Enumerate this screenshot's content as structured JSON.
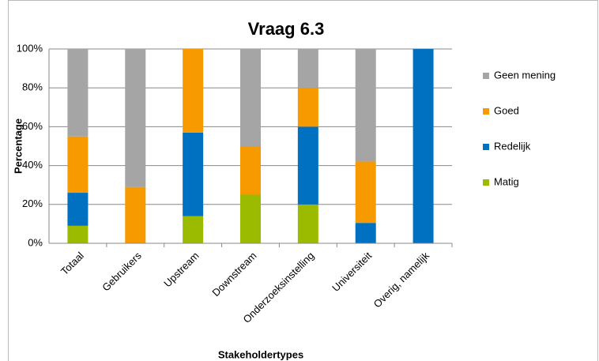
{
  "chart_data": {
    "type": "stacked_bar",
    "title": "Vraag 6.3",
    "x_label": "Stakeholdertypes",
    "y_label": "Percentage",
    "categories": [
      "Totaal",
      "Gebruikers",
      "Upstream",
      "Downstream",
      "Onderzoeksinstelling",
      "Universiteit",
      "Overig, namelijk"
    ],
    "series": [
      {
        "name": "Matig",
        "color": "#9bbb00",
        "values": [
          9,
          0,
          14,
          25,
          20,
          0,
          0
        ]
      },
      {
        "name": "Redelijk",
        "color": "#0070c0",
        "values": [
          17,
          0,
          43,
          0,
          40,
          10.5,
          100
        ]
      },
      {
        "name": "Goed",
        "color": "#f79a00",
        "values": [
          29,
          29,
          43,
          25,
          20,
          31.6,
          0
        ]
      },
      {
        "name": "Geen mening",
        "color": "#a5a5a5",
        "values": [
          45,
          71,
          0,
          50,
          20,
          57.9,
          0
        ]
      }
    ],
    "ylim": [
      0,
      100
    ],
    "yticks": [
      {
        "value": 0,
        "label": "0%"
      },
      {
        "value": 20,
        "label": "20%"
      },
      {
        "value": 40,
        "label": "40%"
      },
      {
        "value": 60,
        "label": "60%"
      },
      {
        "value": 80,
        "label": "80%"
      },
      {
        "value": 100,
        "label": "100%"
      }
    ],
    "grid": true,
    "legend": "right"
  }
}
